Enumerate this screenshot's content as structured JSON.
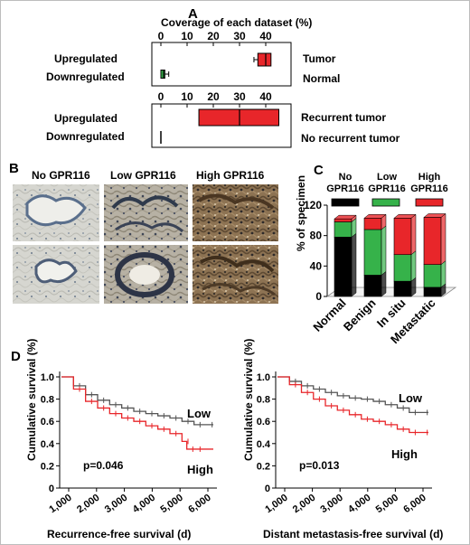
{
  "panels": {
    "A": {
      "letter": "A",
      "top_title": "Coverage of each dataset (%)",
      "top_plot": {
        "ticks": [
          "0",
          "10",
          "20",
          "30",
          "40"
        ],
        "rows": [
          {
            "label": "Upregulated",
            "right_label": "Tumor",
            "q1": 37,
            "median": 40,
            "q3": 42,
            "whisker_low": 35.5,
            "whisker_high": 42,
            "color": "#e8262a"
          },
          {
            "label": "Downregulated",
            "right_label": "Normal",
            "q1": 0,
            "median": 1,
            "q3": 1.5,
            "whisker_low": 0,
            "whisker_high": 3,
            "color": "#36b24a"
          }
        ]
      },
      "bottom_plot": {
        "ticks": [
          "0",
          "10",
          "20",
          "30",
          "40"
        ],
        "rows": [
          {
            "label": "Upregulated",
            "right_label": "Recurrent tumor",
            "q1": 14.5,
            "median": 30,
            "q3": 45,
            "color": "#e8262a"
          },
          {
            "label": "Downregulated",
            "right_label": "No recurrent tumor",
            "q1": 0,
            "median": 0,
            "q3": 0.3,
            "color": "#e8262a"
          }
        ]
      }
    },
    "B": {
      "letter": "B",
      "columns": [
        "No GPR116",
        "Low GPR116",
        "High GPR116"
      ]
    },
    "C": {
      "letter": "C",
      "legend": [
        "No GPR116",
        "Low GPR116",
        "High GPR116"
      ],
      "legend_colors": [
        "#000000",
        "#36b24a",
        "#e8262a"
      ],
      "ylabel": "% of specimen",
      "yticks": [
        "0",
        "40",
        "80",
        "120"
      ]
    },
    "D": {
      "letter": "D",
      "left": {
        "ylabel": "Cumulative survival (%)",
        "xlabel": "Recurrence-free survival (d)",
        "pvalue": "p=0.046",
        "low_label": "Low",
        "high_label": "High"
      },
      "right": {
        "ylabel": "Cumulative survival (%)",
        "xlabel": "Distant metastasis-free survival (d)",
        "pvalue": "p=0.013",
        "low_label": "Low",
        "high_label": "High"
      },
      "xticks": [
        "1,000",
        "2,000",
        "3,000",
        "4,000",
        "5,000",
        "6,000"
      ],
      "yticks": [
        "0",
        "0.2",
        "0.4",
        "0.6",
        "0.8",
        "1.0"
      ]
    }
  },
  "chart_data": [
    {
      "type": "bar",
      "title": "",
      "ylabel": "% of specimen",
      "categories": [
        "Normal",
        "Benign",
        "In situ",
        "Metastatic"
      ],
      "ylim": [
        0,
        120
      ],
      "stacked": true,
      "series": [
        {
          "name": "No GPR116",
          "values": [
            78,
            28,
            20,
            12
          ]
        },
        {
          "name": "Low GPR116",
          "values": [
            20,
            60,
            35,
            30
          ]
        },
        {
          "name": "High GPR116",
          "values": [
            4,
            15,
            48,
            62
          ]
        }
      ]
    },
    {
      "type": "line",
      "title": "",
      "xlabel": "Recurrence-free survival (d)",
      "ylabel": "Cumulative survival (%)",
      "xlim": [
        0,
        6500
      ],
      "ylim": [
        0,
        1.05
      ],
      "series": [
        {
          "name": "Low",
          "x": [
            0,
            500,
            1000,
            1500,
            2000,
            2500,
            3000,
            3500,
            4000,
            4500,
            5000,
            5500,
            6000,
            6300
          ],
          "y": [
            1.0,
            0.92,
            0.84,
            0.79,
            0.75,
            0.72,
            0.69,
            0.67,
            0.65,
            0.63,
            0.6,
            0.57,
            0.57,
            0.57
          ]
        },
        {
          "name": "High",
          "x": [
            0,
            500,
            1000,
            1500,
            2000,
            2500,
            3000,
            3500,
            4000,
            4500,
            5000,
            5200,
            5500,
            6300
          ],
          "y": [
            1.0,
            0.89,
            0.78,
            0.72,
            0.67,
            0.63,
            0.6,
            0.56,
            0.53,
            0.49,
            0.42,
            0.35,
            0.35,
            0.35
          ]
        }
      ]
    },
    {
      "type": "line",
      "title": "",
      "xlabel": "Distant metastasis-free survival (d)",
      "ylabel": "Cumulative survival (%)",
      "xlim": [
        0,
        6500
      ],
      "ylim": [
        0,
        1.05
      ],
      "series": [
        {
          "name": "Low",
          "x": [
            0,
            500,
            1000,
            1500,
            2000,
            2500,
            3000,
            3500,
            4000,
            4500,
            5000,
            5500,
            6000,
            6300
          ],
          "y": [
            1.0,
            0.96,
            0.92,
            0.89,
            0.86,
            0.83,
            0.81,
            0.8,
            0.78,
            0.75,
            0.72,
            0.68,
            0.68,
            0.68
          ]
        },
        {
          "name": "High",
          "x": [
            0,
            500,
            1000,
            1500,
            2000,
            2500,
            3000,
            3500,
            4000,
            4500,
            5000,
            5500,
            6000,
            6300
          ],
          "y": [
            1.0,
            0.93,
            0.86,
            0.8,
            0.74,
            0.7,
            0.66,
            0.62,
            0.6,
            0.57,
            0.53,
            0.5,
            0.5,
            0.5
          ]
        }
      ]
    }
  ]
}
